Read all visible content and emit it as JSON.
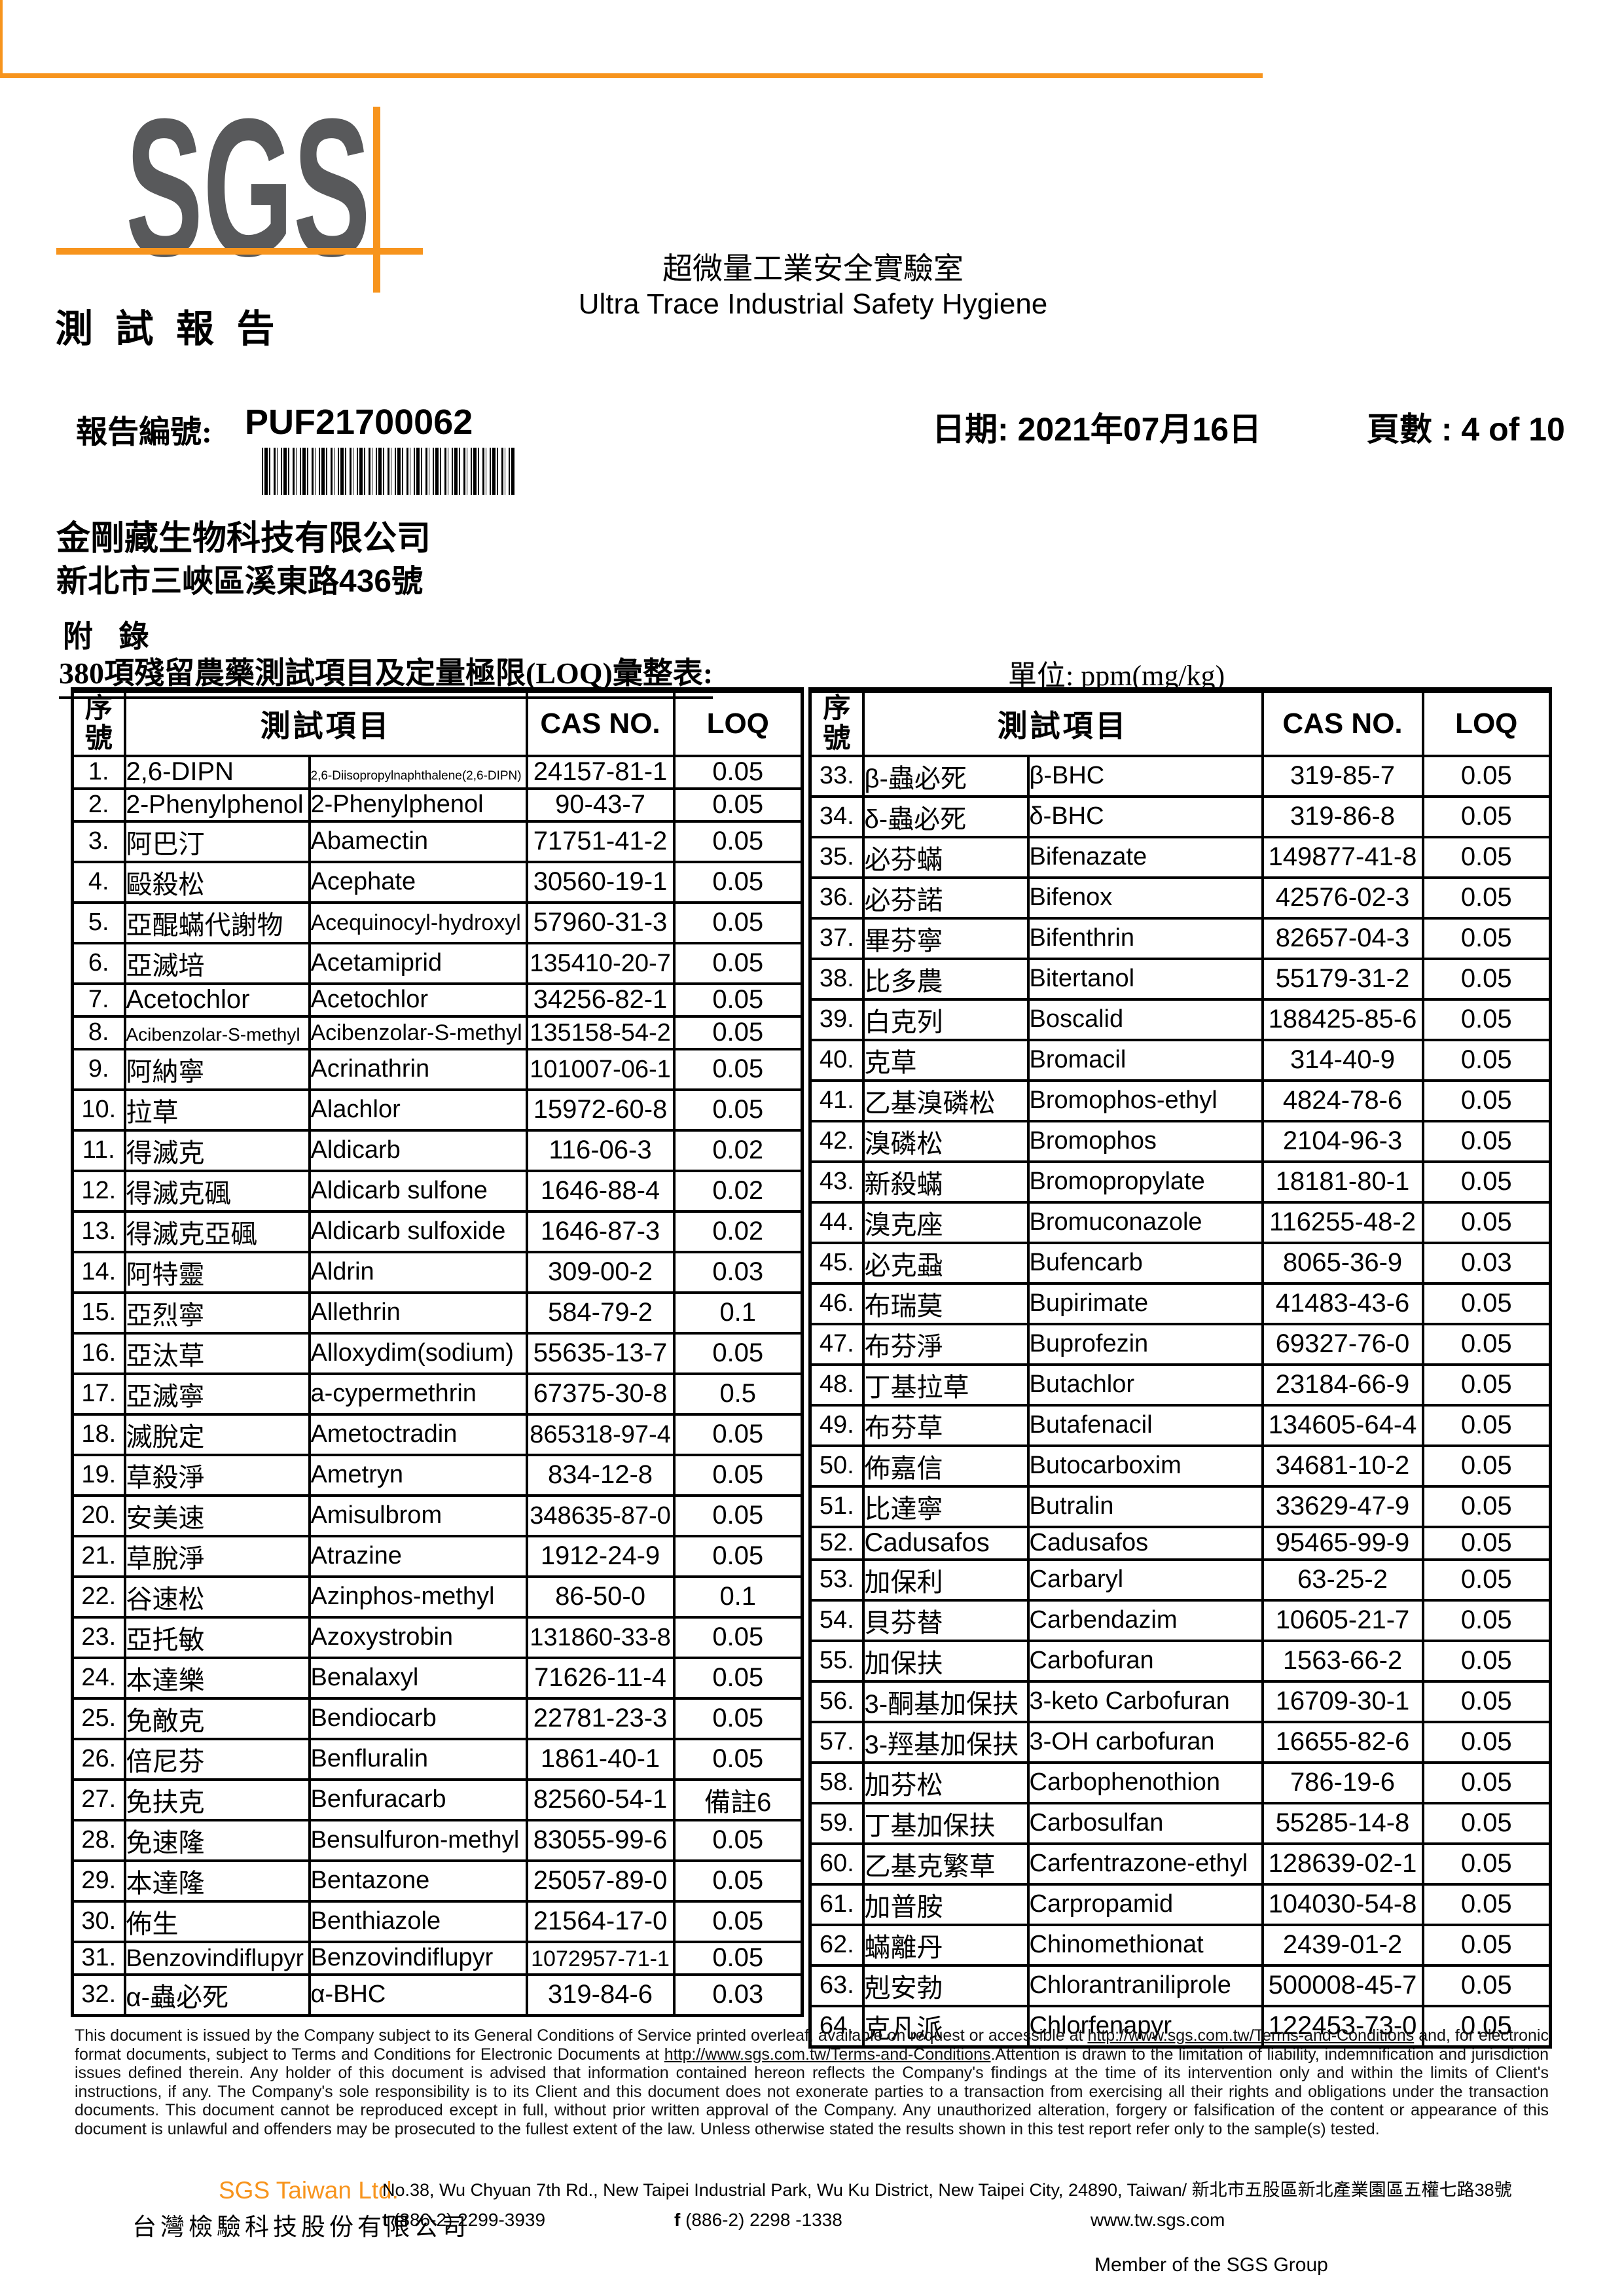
{
  "colors": {
    "accent_orange": "#F7941D",
    "logo_gray": "#58595B"
  },
  "header": {
    "logo_text": "SGS",
    "report_title": "測 試 報 告",
    "lab_title_zh": "超微量工業安全實驗室",
    "lab_title_en": "Ultra Trace Industrial Safety Hygiene",
    "report_no_label": "報告編號:",
    "report_no": "PUF21700062",
    "date_line": "日期: 2021年07月16日",
    "page_line": "頁數 : 4 of 10",
    "company_name": "金剛藏生物科技有限公司",
    "company_address": "新北市三峽區溪東路436號"
  },
  "appendix": {
    "appendix_label": "附 錄",
    "table_title": "380項殘留農藥測試項目及定量極限(LOQ)彙整表:",
    "unit_label": "單位: ppm(mg/kg)"
  },
  "table": {
    "headers": {
      "seq": "序\n號",
      "item": "測試項目",
      "cas": "CAS NO.",
      "loq": "LOQ"
    },
    "rows_left": [
      {
        "no": "1.",
        "zh": "2,6-DIPN",
        "en": "2,6-Diisopropylnaphthalene(2,6-DIPN)",
        "cas": "24157-81-1",
        "loq": "0.05"
      },
      {
        "no": "2.",
        "zh": "2-Phenylphenol",
        "en": "2-Phenylphenol",
        "cas": "90-43-7",
        "loq": "0.05"
      },
      {
        "no": "3.",
        "zh": "阿巴汀",
        "en": "Abamectin",
        "cas": "71751-41-2",
        "loq": "0.05"
      },
      {
        "no": "4.",
        "zh": "毆殺松",
        "en": "Acephate",
        "cas": "30560-19-1",
        "loq": "0.05"
      },
      {
        "no": "5.",
        "zh": "亞醌蟎代謝物",
        "en": "Acequinocyl-hydroxyl",
        "cas": "57960-31-3",
        "loq": "0.05"
      },
      {
        "no": "6.",
        "zh": "亞滅培",
        "en": "Acetamiprid",
        "cas": "135410-20-7",
        "loq": "0.05"
      },
      {
        "no": "7.",
        "zh": "Acetochlor",
        "en": "Acetochlor",
        "cas": "34256-82-1",
        "loq": "0.05"
      },
      {
        "no": "8.",
        "zh": "Acibenzolar-S-methyl",
        "en": "Acibenzolar-S-methyl",
        "cas": "135158-54-2",
        "loq": "0.05"
      },
      {
        "no": "9.",
        "zh": "阿納寧",
        "en": "Acrinathrin",
        "cas": "101007-06-1",
        "loq": "0.05"
      },
      {
        "no": "10.",
        "zh": "拉草",
        "en": "Alachlor",
        "cas": "15972-60-8",
        "loq": "0.05"
      },
      {
        "no": "11.",
        "zh": "得滅克",
        "en": "Aldicarb",
        "cas": "116-06-3",
        "loq": "0.02"
      },
      {
        "no": "12.",
        "zh": "得滅克碸",
        "en": "Aldicarb sulfone",
        "cas": "1646-88-4",
        "loq": "0.02"
      },
      {
        "no": "13.",
        "zh": "得滅克亞碸",
        "en": "Aldicarb sulfoxide",
        "cas": "1646-87-3",
        "loq": "0.02"
      },
      {
        "no": "14.",
        "zh": "阿特靈",
        "en": "Aldrin",
        "cas": "309-00-2",
        "loq": "0.03"
      },
      {
        "no": "15.",
        "zh": "亞烈寧",
        "en": "Allethrin",
        "cas": "584-79-2",
        "loq": "0.1"
      },
      {
        "no": "16.",
        "zh": "亞汰草",
        "en": "Alloxydim(sodium)",
        "cas": "55635-13-7",
        "loq": "0.05"
      },
      {
        "no": "17.",
        "zh": "亞滅寧",
        "en": "a-cypermethrin",
        "cas": "67375-30-8",
        "loq": "0.5"
      },
      {
        "no": "18.",
        "zh": "滅脫定",
        "en": "Ametoctradin",
        "cas": "865318-97-4",
        "loq": "0.05"
      },
      {
        "no": "19.",
        "zh": "草殺淨",
        "en": "Ametryn",
        "cas": "834-12-8",
        "loq": "0.05"
      },
      {
        "no": "20.",
        "zh": "安美速",
        "en": "Amisulbrom",
        "cas": "348635-87-0",
        "loq": "0.05"
      },
      {
        "no": "21.",
        "zh": "草脫淨",
        "en": "Atrazine",
        "cas": "1912-24-9",
        "loq": "0.05"
      },
      {
        "no": "22.",
        "zh": "谷速松",
        "en": "Azinphos-methyl",
        "cas": "86-50-0",
        "loq": "0.1"
      },
      {
        "no": "23.",
        "zh": "亞托敏",
        "en": "Azoxystrobin",
        "cas": "131860-33-8",
        "loq": "0.05"
      },
      {
        "no": "24.",
        "zh": "本達樂",
        "en": "Benalaxyl",
        "cas": "71626-11-4",
        "loq": "0.05"
      },
      {
        "no": "25.",
        "zh": "免敵克",
        "en": "Bendiocarb",
        "cas": "22781-23-3",
        "loq": "0.05"
      },
      {
        "no": "26.",
        "zh": "倍尼芬",
        "en": "Benfluralin",
        "cas": "1861-40-1",
        "loq": "0.05"
      },
      {
        "no": "27.",
        "zh": "免扶克",
        "en": "Benfuracarb",
        "cas": "82560-54-1",
        "loq": "備註6"
      },
      {
        "no": "28.",
        "zh": "免速隆",
        "en": "Bensulfuron-methyl",
        "cas": "83055-99-6",
        "loq": "0.05"
      },
      {
        "no": "29.",
        "zh": "本達隆",
        "en": "Bentazone",
        "cas": "25057-89-0",
        "loq": "0.05"
      },
      {
        "no": "30.",
        "zh": "佈生",
        "en": "Benthiazole",
        "cas": "21564-17-0",
        "loq": "0.05"
      },
      {
        "no": "31.",
        "zh": "Benzovindiflupyr",
        "en": "Benzovindiflupyr",
        "cas": "1072957-71-1",
        "loq": "0.05"
      },
      {
        "no": "32.",
        "zh": "α-蟲必死",
        "en": "α-BHC",
        "cas": "319-84-6",
        "loq": "0.03"
      }
    ],
    "rows_right": [
      {
        "no": "33.",
        "zh": "β-蟲必死",
        "en": "β-BHC",
        "cas": "319-85-7",
        "loq": "0.05"
      },
      {
        "no": "34.",
        "zh": "δ-蟲必死",
        "en": "δ-BHC",
        "cas": "319-86-8",
        "loq": "0.05"
      },
      {
        "no": "35.",
        "zh": "必芬蟎",
        "en": "Bifenazate",
        "cas": "149877-41-8",
        "loq": "0.05"
      },
      {
        "no": "36.",
        "zh": "必芬諾",
        "en": "Bifenox",
        "cas": "42576-02-3",
        "loq": "0.05"
      },
      {
        "no": "37.",
        "zh": "畢芬寧",
        "en": "Bifenthrin",
        "cas": "82657-04-3",
        "loq": "0.05"
      },
      {
        "no": "38.",
        "zh": "比多農",
        "en": "Bitertanol",
        "cas": "55179-31-2",
        "loq": "0.05"
      },
      {
        "no": "39.",
        "zh": "白克列",
        "en": "Boscalid",
        "cas": "188425-85-6",
        "loq": "0.05"
      },
      {
        "no": "40.",
        "zh": "克草",
        "en": "Bromacil",
        "cas": "314-40-9",
        "loq": "0.05"
      },
      {
        "no": "41.",
        "zh": "乙基溴磷松",
        "en": "Bromophos-ethyl",
        "cas": "4824-78-6",
        "loq": "0.05"
      },
      {
        "no": "42.",
        "zh": "溴磷松",
        "en": "Bromophos",
        "cas": "2104-96-3",
        "loq": "0.05"
      },
      {
        "no": "43.",
        "zh": "新殺蟎",
        "en": "Bromopropylate",
        "cas": "18181-80-1",
        "loq": "0.05"
      },
      {
        "no": "44.",
        "zh": "溴克座",
        "en": "Bromuconazole",
        "cas": "116255-48-2",
        "loq": "0.05"
      },
      {
        "no": "45.",
        "zh": "必克蝨",
        "en": "Bufencarb",
        "cas": "8065-36-9",
        "loq": "0.03"
      },
      {
        "no": "46.",
        "zh": "布瑞莫",
        "en": "Bupirimate",
        "cas": "41483-43-6",
        "loq": "0.05"
      },
      {
        "no": "47.",
        "zh": "布芬淨",
        "en": "Buprofezin",
        "cas": "69327-76-0",
        "loq": "0.05"
      },
      {
        "no": "48.",
        "zh": "丁基拉草",
        "en": "Butachlor",
        "cas": "23184-66-9",
        "loq": "0.05"
      },
      {
        "no": "49.",
        "zh": "布芬草",
        "en": "Butafenacil",
        "cas": "134605-64-4",
        "loq": "0.05"
      },
      {
        "no": "50.",
        "zh": "佈嘉信",
        "en": "Butocarboxim",
        "cas": "34681-10-2",
        "loq": "0.05"
      },
      {
        "no": "51.",
        "zh": "比達寧",
        "en": "Butralin",
        "cas": "33629-47-9",
        "loq": "0.05"
      },
      {
        "no": "52.",
        "zh": "Cadusafos",
        "en": "Cadusafos",
        "cas": "95465-99-9",
        "loq": "0.05"
      },
      {
        "no": "53.",
        "zh": "加保利",
        "en": "Carbaryl",
        "cas": "63-25-2",
        "loq": "0.05"
      },
      {
        "no": "54.",
        "zh": "貝芬替",
        "en": "Carbendazim",
        "cas": "10605-21-7",
        "loq": "0.05"
      },
      {
        "no": "55.",
        "zh": "加保扶",
        "en": "Carbofuran",
        "cas": "1563-66-2",
        "loq": "0.05"
      },
      {
        "no": "56.",
        "zh": "3-酮基加保扶",
        "en": "3-keto Carbofuran",
        "cas": "16709-30-1",
        "loq": "0.05"
      },
      {
        "no": "57.",
        "zh": "3-羥基加保扶",
        "en": "3-OH carbofuran",
        "cas": "16655-82-6",
        "loq": "0.05"
      },
      {
        "no": "58.",
        "zh": "加芬松",
        "en": "Carbophenothion",
        "cas": "786-19-6",
        "loq": "0.05"
      },
      {
        "no": "59.",
        "zh": "丁基加保扶",
        "en": "Carbosulfan",
        "cas": "55285-14-8",
        "loq": "0.05"
      },
      {
        "no": "60.",
        "zh": "乙基克繁草",
        "en": "Carfentrazone-ethyl",
        "cas": "128639-02-1",
        "loq": "0.05"
      },
      {
        "no": "61.",
        "zh": "加普胺",
        "en": "Carpropamid",
        "cas": "104030-54-8",
        "loq": "0.05"
      },
      {
        "no": "62.",
        "zh": "蟎離丹",
        "en": "Chinomethionat",
        "cas": "2439-01-2",
        "loq": "0.05"
      },
      {
        "no": "63.",
        "zh": "剋安勃",
        "en": "Chlorantraniliprole",
        "cas": "500008-45-7",
        "loq": "0.05"
      },
      {
        "no": "64.",
        "zh": "克凡派",
        "en": "Chlorfenapyr",
        "cas": "122453-73-0",
        "loq": "0.05"
      }
    ]
  },
  "footer": {
    "legal": {
      "part1": "This document is issued by the Company subject to its General Conditions of Service printed overleaf, available on request or accessible at ",
      "url1": "http://www.sgs.com.tw/Terms-and-Conditions",
      "part2": " and, for electronic format documents, subject to Terms and Conditions for Electronic Documents at ",
      "url2": "http://www.sgs.com.tw/Terms-and-Conditions",
      "part3": ".Attention is drawn to the limitation of liability, indemnification and jurisdiction issues defined therein. Any holder of this document is advised that information contained hereon reflects the Company's findings at the time of its intervention only and within the limits of Client's instructions, if any. The Company's sole responsibility is to its Client and this document does not exonerate parties to a transaction from exercising all their rights and obligations under the transaction documents. This document cannot be reproduced except in full, without prior written approval of the Company. Any unauthorized alteration, forgery or falsification of the content or appearance of this document is unlawful and offenders may be prosecuted to the fullest extent of the law. Unless otherwise stated the results shown in this test report refer only to the sample(s) tested."
    },
    "sgs_taiwan": "SGS Taiwan Ltd.",
    "company_zh": "台灣檢驗科技股份有限公司",
    "address": "No.38, Wu Chyuan 7th Rd., New Taipei Industrial Park, Wu Ku District, New Taipei City, 24890, Taiwan/ 新北市五股區新北產業園區五權七路38號",
    "tel_prefix": "t",
    "tel": " (886-2) 2299-3939",
    "fax_prefix": "f",
    "fax": " (886-2) 2298 -1338",
    "website": "www.tw.sgs.com",
    "member": "Member of the SGS Group"
  }
}
